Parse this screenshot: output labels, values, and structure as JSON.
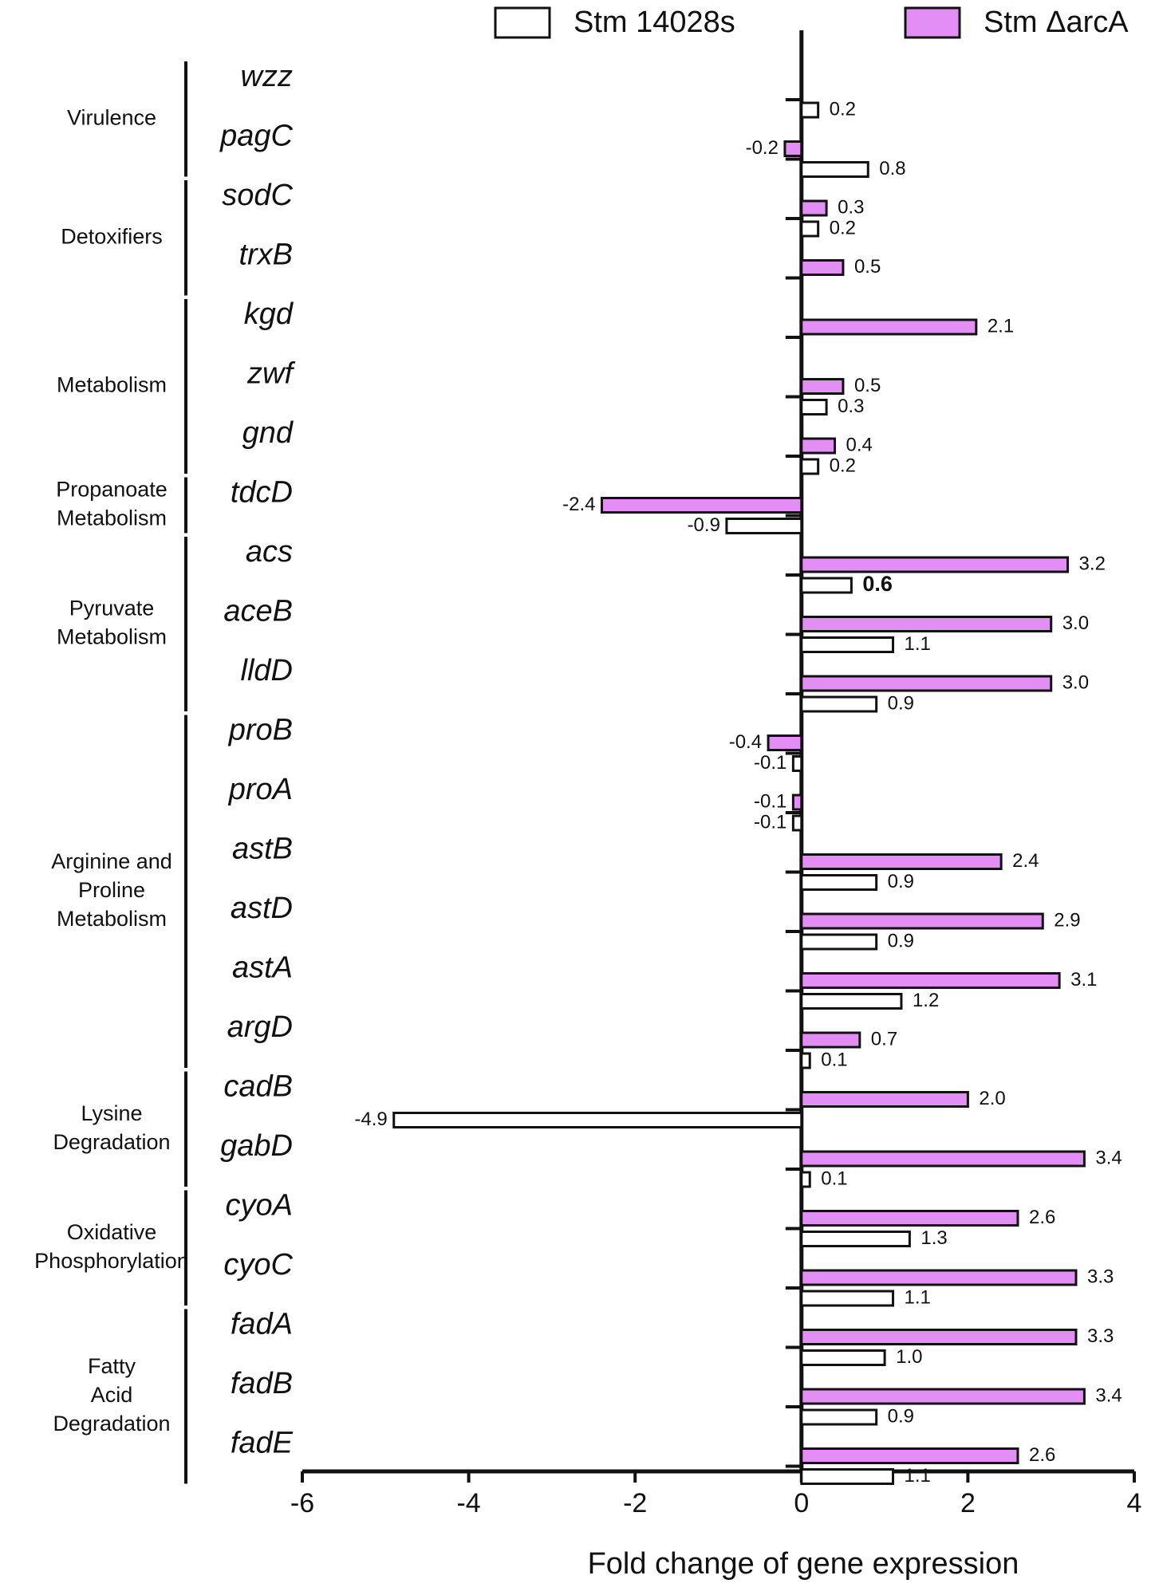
{
  "chart_data": {
    "type": "barh",
    "x_label": "Fold change of gene expression",
    "xlim": [
      -6,
      4
    ],
    "xticks": [
      -6,
      -4,
      -2,
      0,
      2,
      4
    ],
    "legend": "top",
    "groups": [
      {
        "label": [
          "Virulence"
        ],
        "categories": [
          "wzz",
          "pagC"
        ]
      },
      {
        "label": [
          "Detoxifiers"
        ],
        "categories": [
          "sodC",
          "trxB"
        ]
      },
      {
        "label": [
          "Metabolism"
        ],
        "categories": [
          "kgd",
          "zwf",
          "gnd"
        ]
      },
      {
        "label": [
          "Propanoate",
          "Metabolism"
        ],
        "categories": [
          "tdcD"
        ]
      },
      {
        "label": [
          "Pyruvate",
          "Metabolism"
        ],
        "categories": [
          "acs",
          "aceB",
          "lldD"
        ]
      },
      {
        "label": [
          "Arginine and",
          "Proline",
          "Metabolism"
        ],
        "categories": [
          "proB",
          "proA",
          "astB",
          "astD",
          "astA",
          "argD"
        ]
      },
      {
        "label": [
          "Lysine",
          "Degradation"
        ],
        "categories": [
          "cadB",
          "gabD"
        ]
      },
      {
        "label": [
          "Oxidative",
          "Phosphorylation"
        ],
        "categories": [
          "cyoA",
          "cyoC"
        ]
      },
      {
        "label": [
          "Fatty",
          "Acid",
          "Degradation"
        ],
        "categories": [
          "fadA",
          "fadB",
          "fadE"
        ]
      }
    ],
    "series": [
      {
        "name": "Stm 14028s",
        "color": "#ffffff",
        "values": [
          0.2,
          0.8,
          0.2,
          null,
          null,
          0.3,
          0.2,
          -0.9,
          0.6,
          1.1,
          0.9,
          -0.1,
          -0.1,
          0.9,
          0.9,
          1.2,
          0.1,
          -4.9,
          0.1,
          1.3,
          1.1,
          1.0,
          0.9,
          1.1
        ],
        "value_labels": [
          "0.2",
          "0.8",
          "0.2",
          null,
          null,
          "0.3",
          "0.2",
          "-0.9",
          "0.6",
          "1.1",
          "0.9",
          "-0.1",
          "-0.1",
          "0.9",
          "0.9",
          "1.2",
          "0.1",
          "-4.9",
          "0.1",
          "1.3",
          "1.1",
          "1.0",
          "0.9",
          "1.1"
        ]
      },
      {
        "name": "Stm ΔarcA",
        "color": "#e28ef5",
        "values": [
          null,
          -0.2,
          0.3,
          0.5,
          2.1,
          0.5,
          0.4,
          -2.4,
          3.2,
          3.0,
          3.0,
          -0.4,
          -0.1,
          2.4,
          2.9,
          3.1,
          0.7,
          2.0,
          3.4,
          2.6,
          3.3,
          3.3,
          3.4,
          2.6
        ],
        "value_labels": [
          null,
          "-0.2",
          "0.3",
          "0.5",
          "2.1",
          "0.5",
          "0.4",
          "-2.4",
          "3.2",
          "3.0",
          "3.0",
          "-0.4",
          "-0.1",
          "2.4",
          "2.9",
          "3.1",
          "0.7",
          "2.0",
          "3.4",
          "2.6",
          "3.3",
          "3.3",
          "3.4",
          "2.6"
        ]
      }
    ]
  }
}
